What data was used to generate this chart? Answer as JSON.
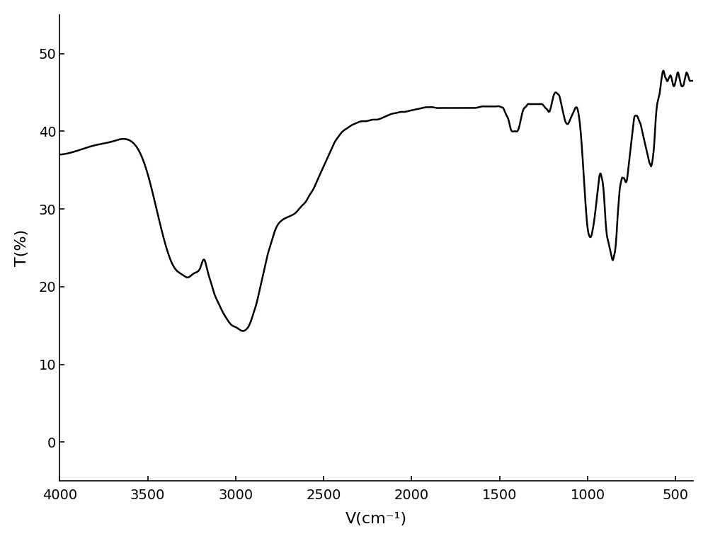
{
  "title": "",
  "xlabel": "V(cm⁻¹)",
  "ylabel": "T(%)",
  "xlim": [
    4000,
    400
  ],
  "ylim": [
    -5,
    55
  ],
  "yticks": [
    0,
    10,
    20,
    30,
    40,
    50
  ],
  "xticks": [
    4000,
    3500,
    3000,
    2500,
    2000,
    1500,
    1000,
    500
  ],
  "line_color": "#000000",
  "line_width": 1.8,
  "background_color": "#ffffff",
  "keypoints": [
    [
      4000,
      37.0
    ],
    [
      3900,
      37.5
    ],
    [
      3800,
      38.2
    ],
    [
      3700,
      38.7
    ],
    [
      3650,
      39.0
    ],
    [
      3600,
      38.8
    ],
    [
      3550,
      37.5
    ],
    [
      3500,
      34.5
    ],
    [
      3450,
      30.0
    ],
    [
      3400,
      25.5
    ],
    [
      3350,
      22.5
    ],
    [
      3300,
      21.5
    ],
    [
      3270,
      21.2
    ],
    [
      3250,
      21.5
    ],
    [
      3230,
      21.8
    ],
    [
      3200,
      22.5
    ],
    [
      3180,
      23.5
    ],
    [
      3160,
      22.0
    ],
    [
      3140,
      20.5
    ],
    [
      3120,
      19.0
    ],
    [
      3100,
      18.0
    ],
    [
      3080,
      17.0
    ],
    [
      3060,
      16.2
    ],
    [
      3040,
      15.5
    ],
    [
      3020,
      15.0
    ],
    [
      3000,
      14.8
    ],
    [
      2980,
      14.5
    ],
    [
      2960,
      14.3
    ],
    [
      2940,
      14.5
    ],
    [
      2920,
      15.2
    ],
    [
      2900,
      16.5
    ],
    [
      2880,
      18.0
    ],
    [
      2860,
      20.0
    ],
    [
      2840,
      22.0
    ],
    [
      2820,
      24.0
    ],
    [
      2800,
      25.5
    ],
    [
      2780,
      27.0
    ],
    [
      2760,
      28.0
    ],
    [
      2740,
      28.5
    ],
    [
      2720,
      28.8
    ],
    [
      2700,
      29.0
    ],
    [
      2680,
      29.2
    ],
    [
      2660,
      29.5
    ],
    [
      2640,
      30.0
    ],
    [
      2620,
      30.5
    ],
    [
      2600,
      31.0
    ],
    [
      2580,
      31.8
    ],
    [
      2560,
      32.5
    ],
    [
      2540,
      33.5
    ],
    [
      2520,
      34.5
    ],
    [
      2500,
      35.5
    ],
    [
      2480,
      36.5
    ],
    [
      2460,
      37.5
    ],
    [
      2440,
      38.5
    ],
    [
      2420,
      39.2
    ],
    [
      2400,
      39.8
    ],
    [
      2380,
      40.2
    ],
    [
      2360,
      40.5
    ],
    [
      2340,
      40.8
    ],
    [
      2320,
      41.0
    ],
    [
      2300,
      41.2
    ],
    [
      2280,
      41.3
    ],
    [
      2260,
      41.3
    ],
    [
      2240,
      41.4
    ],
    [
      2220,
      41.5
    ],
    [
      2200,
      41.5
    ],
    [
      2180,
      41.6
    ],
    [
      2160,
      41.8
    ],
    [
      2140,
      42.0
    ],
    [
      2120,
      42.2
    ],
    [
      2100,
      42.3
    ],
    [
      2080,
      42.4
    ],
    [
      2060,
      42.5
    ],
    [
      2040,
      42.5
    ],
    [
      2020,
      42.6
    ],
    [
      2000,
      42.7
    ],
    [
      1980,
      42.8
    ],
    [
      1960,
      42.9
    ],
    [
      1940,
      43.0
    ],
    [
      1920,
      43.1
    ],
    [
      1900,
      43.1
    ],
    [
      1880,
      43.1
    ],
    [
      1860,
      43.0
    ],
    [
      1840,
      43.0
    ],
    [
      1820,
      43.0
    ],
    [
      1800,
      43.0
    ],
    [
      1780,
      43.0
    ],
    [
      1760,
      43.0
    ],
    [
      1740,
      43.0
    ],
    [
      1720,
      43.0
    ],
    [
      1700,
      43.0
    ],
    [
      1680,
      43.0
    ],
    [
      1660,
      43.0
    ],
    [
      1640,
      43.0
    ],
    [
      1620,
      43.1
    ],
    [
      1600,
      43.2
    ],
    [
      1580,
      43.2
    ],
    [
      1560,
      43.2
    ],
    [
      1540,
      43.2
    ],
    [
      1520,
      43.2
    ],
    [
      1500,
      43.2
    ],
    [
      1490,
      43.1
    ],
    [
      1480,
      43.0
    ],
    [
      1470,
      42.5
    ],
    [
      1460,
      42.0
    ],
    [
      1450,
      41.5
    ],
    [
      1440,
      40.5
    ],
    [
      1430,
      40.0
    ],
    [
      1420,
      40.0
    ],
    [
      1410,
      40.0
    ],
    [
      1400,
      40.0
    ],
    [
      1390,
      40.5
    ],
    [
      1380,
      41.5
    ],
    [
      1370,
      42.5
    ],
    [
      1360,
      43.0
    ],
    [
      1350,
      43.2
    ],
    [
      1340,
      43.5
    ],
    [
      1330,
      43.5
    ],
    [
      1320,
      43.5
    ],
    [
      1310,
      43.5
    ],
    [
      1300,
      43.5
    ],
    [
      1290,
      43.5
    ],
    [
      1280,
      43.5
    ],
    [
      1270,
      43.5
    ],
    [
      1260,
      43.5
    ],
    [
      1250,
      43.3
    ],
    [
      1240,
      43.0
    ],
    [
      1230,
      42.8
    ],
    [
      1220,
      42.5
    ],
    [
      1210,
      43.0
    ],
    [
      1200,
      44.0
    ],
    [
      1190,
      44.8
    ],
    [
      1180,
      45.0
    ],
    [
      1170,
      44.8
    ],
    [
      1160,
      44.5
    ],
    [
      1150,
      43.5
    ],
    [
      1140,
      42.5
    ],
    [
      1130,
      41.5
    ],
    [
      1120,
      41.0
    ],
    [
      1110,
      41.0
    ],
    [
      1100,
      41.5
    ],
    [
      1090,
      42.0
    ],
    [
      1080,
      42.5
    ],
    [
      1070,
      43.0
    ],
    [
      1060,
      43.0
    ],
    [
      1050,
      42.0
    ],
    [
      1040,
      40.0
    ],
    [
      1030,
      37.0
    ],
    [
      1020,
      33.5
    ],
    [
      1010,
      30.0
    ],
    [
      1000,
      27.5
    ],
    [
      990,
      26.5
    ],
    [
      980,
      26.5
    ],
    [
      970,
      27.5
    ],
    [
      960,
      29.0
    ],
    [
      950,
      31.0
    ],
    [
      940,
      33.0
    ],
    [
      935,
      34.0
    ],
    [
      930,
      34.5
    ],
    [
      925,
      34.5
    ],
    [
      920,
      34.0
    ],
    [
      915,
      33.5
    ],
    [
      910,
      32.5
    ],
    [
      905,
      31.0
    ],
    [
      900,
      29.0
    ],
    [
      895,
      27.5
    ],
    [
      890,
      26.5
    ],
    [
      885,
      26.0
    ],
    [
      880,
      25.5
    ],
    [
      875,
      25.0
    ],
    [
      870,
      24.5
    ],
    [
      865,
      24.0
    ],
    [
      860,
      23.5
    ],
    [
      855,
      23.5
    ],
    [
      850,
      24.0
    ],
    [
      845,
      24.5
    ],
    [
      840,
      25.5
    ],
    [
      835,
      27.0
    ],
    [
      830,
      29.0
    ],
    [
      825,
      30.5
    ],
    [
      820,
      32.0
    ],
    [
      815,
      33.0
    ],
    [
      810,
      33.5
    ],
    [
      805,
      34.0
    ],
    [
      800,
      34.0
    ],
    [
      795,
      34.0
    ],
    [
      790,
      33.8
    ],
    [
      785,
      33.5
    ],
    [
      780,
      33.5
    ],
    [
      775,
      34.0
    ],
    [
      770,
      35.0
    ],
    [
      765,
      36.0
    ],
    [
      760,
      37.0
    ],
    [
      755,
      38.0
    ],
    [
      750,
      39.0
    ],
    [
      745,
      40.0
    ],
    [
      740,
      41.0
    ],
    [
      735,
      41.8
    ],
    [
      730,
      42.0
    ],
    [
      725,
      42.0
    ],
    [
      720,
      42.0
    ],
    [
      715,
      41.8
    ],
    [
      710,
      41.5
    ],
    [
      705,
      41.2
    ],
    [
      700,
      41.0
    ],
    [
      695,
      40.5
    ],
    [
      690,
      40.0
    ],
    [
      685,
      39.5
    ],
    [
      680,
      39.0
    ],
    [
      675,
      38.5
    ],
    [
      670,
      38.0
    ],
    [
      665,
      37.5
    ],
    [
      660,
      37.0
    ],
    [
      655,
      36.5
    ],
    [
      650,
      36.0
    ],
    [
      645,
      35.8
    ],
    [
      640,
      35.5
    ],
    [
      635,
      35.8
    ],
    [
      630,
      36.5
    ],
    [
      625,
      37.5
    ],
    [
      620,
      39.0
    ],
    [
      615,
      41.0
    ],
    [
      610,
      42.5
    ],
    [
      605,
      43.5
    ],
    [
      600,
      44.0
    ],
    [
      595,
      44.5
    ],
    [
      590,
      45.0
    ],
    [
      585,
      46.0
    ],
    [
      580,
      46.8
    ],
    [
      575,
      47.5
    ],
    [
      570,
      47.8
    ],
    [
      565,
      47.5
    ],
    [
      560,
      47.0
    ],
    [
      555,
      46.8
    ],
    [
      550,
      46.5
    ],
    [
      545,
      46.5
    ],
    [
      540,
      46.8
    ],
    [
      535,
      47.0
    ],
    [
      530,
      47.2
    ],
    [
      525,
      47.0
    ],
    [
      520,
      46.5
    ],
    [
      515,
      46.0
    ],
    [
      510,
      45.8
    ],
    [
      505,
      46.0
    ],
    [
      500,
      46.5
    ],
    [
      495,
      47.0
    ],
    [
      490,
      47.5
    ],
    [
      485,
      47.5
    ],
    [
      480,
      47.0
    ],
    [
      475,
      46.5
    ],
    [
      470,
      46.0
    ],
    [
      465,
      45.8
    ],
    [
      460,
      45.8
    ],
    [
      455,
      46.0
    ],
    [
      450,
      46.5
    ],
    [
      445,
      47.0
    ],
    [
      440,
      47.5
    ],
    [
      435,
      47.5
    ],
    [
      430,
      47.2
    ],
    [
      425,
      46.8
    ],
    [
      420,
      46.5
    ],
    [
      415,
      46.5
    ],
    [
      410,
      46.5
    ],
    [
      405,
      46.5
    ],
    [
      400,
      46.5
    ]
  ]
}
